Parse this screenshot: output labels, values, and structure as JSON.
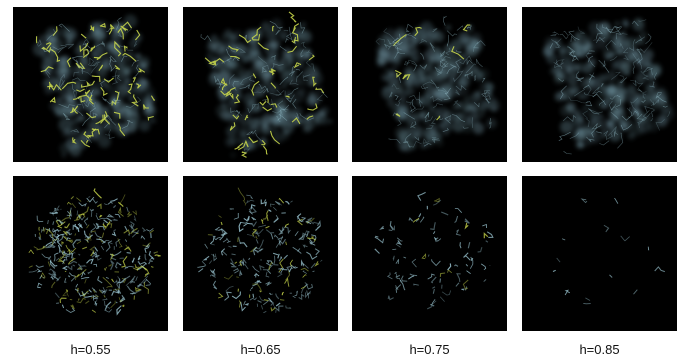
{
  "figure": {
    "columns": [
      {
        "label": "h=0.55",
        "top_density": 1.0,
        "top_highlight": 0.9,
        "bottom_density": 1.0
      },
      {
        "label": "h=0.65",
        "top_density": 0.9,
        "top_highlight": 0.55,
        "bottom_density": 0.65
      },
      {
        "label": "h=0.75",
        "top_density": 0.85,
        "top_highlight": 0.12,
        "bottom_density": 0.25
      },
      {
        "label": "h=0.85",
        "top_density": 0.85,
        "top_highlight": 0.0,
        "bottom_density": 0.04
      }
    ],
    "colors": {
      "background": "#000000",
      "haze": "#7aa2b0",
      "strand": "#9bc6d2",
      "highlight": "#c8d64a"
    }
  }
}
